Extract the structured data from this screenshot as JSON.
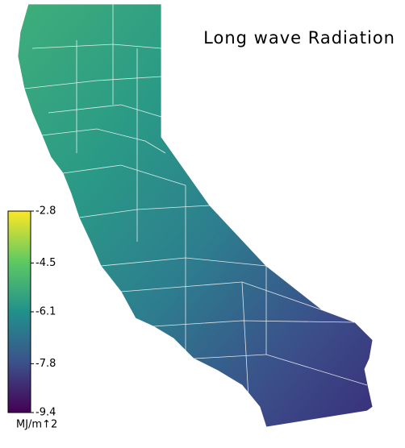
{
  "title": "Long wave Radiation",
  "colorbar": {
    "lim": [
      -9.4,
      -2.8
    ],
    "ticks": [
      -2.8,
      -4.5,
      -6.1,
      -7.8,
      -9.4
    ],
    "label": "MJ/m↑2"
  }
}
